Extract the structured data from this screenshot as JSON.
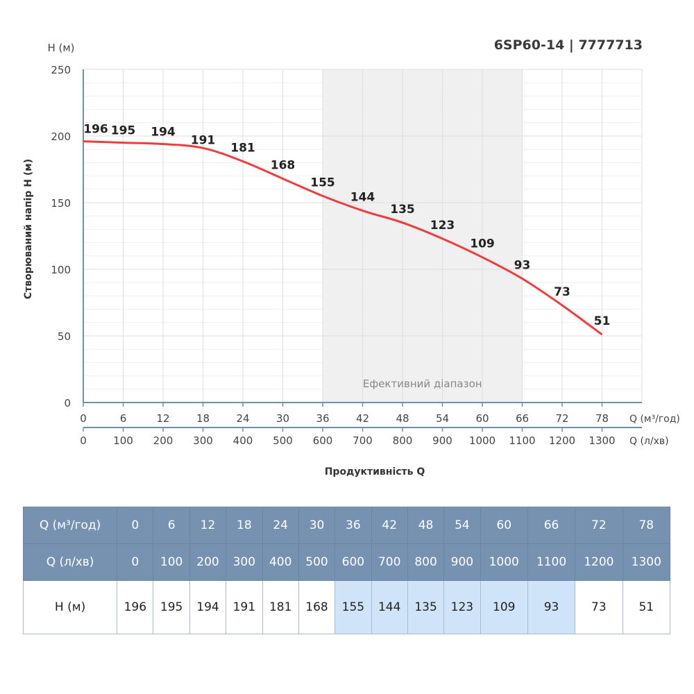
{
  "title": "6SP60-14 | 7777713",
  "chart_data": {
    "type": "line",
    "ylabel": "Створюваний напір H (м)",
    "yunit_label": "H (м)",
    "xlabel": "Продуктивність Q",
    "x_unit_label": "Q (м³/год)",
    "x2_unit_label": "Q (л/хв)",
    "x": [
      0,
      6,
      12,
      18,
      24,
      30,
      36,
      42,
      48,
      54,
      60,
      66,
      72,
      78
    ],
    "x2": [
      0,
      100,
      200,
      300,
      400,
      500,
      600,
      700,
      800,
      900,
      1000,
      1100,
      1200,
      1300
    ],
    "y": [
      196,
      195,
      194,
      191,
      181,
      168,
      155,
      144,
      135,
      123,
      109,
      93,
      73,
      51
    ],
    "yticks": [
      0,
      50,
      100,
      150,
      200,
      250
    ],
    "ylim": [
      0,
      250
    ],
    "xlim": [
      0,
      84
    ],
    "grid": true,
    "series_color": "#f03c3c",
    "effective_range": {
      "from": 36,
      "to": 66,
      "label": "Ефективний діапазон"
    }
  },
  "table": {
    "row_labels": [
      "Q (м³/год)",
      "Q (л/хв)",
      "H (м)"
    ]
  }
}
